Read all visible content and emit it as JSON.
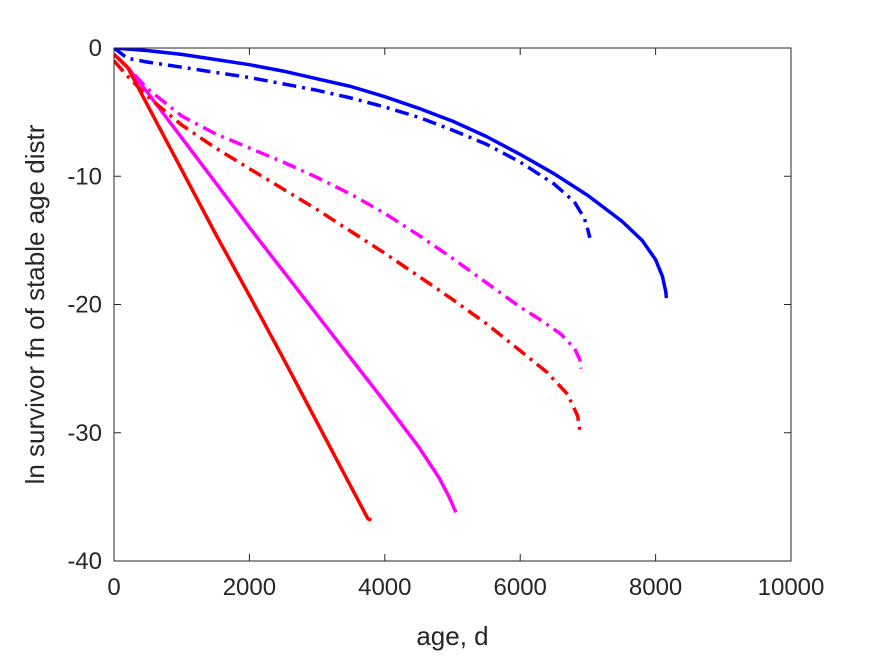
{
  "chart_data": {
    "type": "line",
    "title": "",
    "xlabel": "age, d",
    "ylabel": "ln survivor fn of stable age distr",
    "xlim": [
      0,
      10000
    ],
    "ylim": [
      -40,
      0
    ],
    "xticks": [
      0,
      2000,
      4000,
      6000,
      8000,
      10000
    ],
    "yticks": [
      0,
      -10,
      -20,
      -30,
      -40
    ],
    "xtick_labels": [
      "0",
      "2000",
      "4000",
      "6000",
      "8000",
      "10000"
    ],
    "ytick_labels": [
      "0",
      "-10",
      "-20",
      "-30",
      "-40"
    ],
    "grid": false,
    "legend": "none",
    "series": [
      {
        "color": "#0000ff",
        "style": "solid",
        "x": [
          0,
          500,
          1000,
          1500,
          2000,
          2500,
          3000,
          3500,
          4000,
          4500,
          5000,
          5500,
          6000,
          6500,
          7000,
          7500,
          7800,
          8000,
          8100,
          8150,
          8160
        ],
        "y": [
          0,
          -0.2,
          -0.5,
          -0.9,
          -1.3,
          -1.8,
          -2.4,
          -3.0,
          -3.8,
          -4.7,
          -5.7,
          -6.9,
          -8.3,
          -9.8,
          -11.5,
          -13.5,
          -15.0,
          -16.5,
          -17.8,
          -19.0,
          -19.5
        ]
      },
      {
        "color": "#0000ff",
        "style": "dashdot",
        "x": [
          0,
          200,
          500,
          1000,
          1500,
          2000,
          2500,
          3000,
          3500,
          4000,
          4500,
          5000,
          5500,
          6000,
          6500,
          6800,
          6950,
          7000,
          7030
        ],
        "y": [
          0,
          -0.8,
          -1.1,
          -1.5,
          -1.9,
          -2.3,
          -2.8,
          -3.3,
          -3.9,
          -4.6,
          -5.4,
          -6.4,
          -7.5,
          -8.9,
          -10.6,
          -12.0,
          -13.3,
          -14.2,
          -14.8
        ]
      },
      {
        "color": "#ff00ff",
        "style": "solid",
        "x": [
          0,
          200,
          500,
          1000,
          1500,
          2000,
          2500,
          3000,
          3500,
          4000,
          4500,
          4800,
          4950,
          5000,
          5050
        ],
        "y": [
          -0.5,
          -1.5,
          -3.5,
          -7.0,
          -10.5,
          -14.0,
          -17.4,
          -20.8,
          -24.2,
          -27.6,
          -31.1,
          -33.5,
          -35.0,
          -35.6,
          -36.2
        ]
      },
      {
        "color": "#ff00ff",
        "style": "dashdot",
        "x": [
          0,
          200,
          500,
          1000,
          1500,
          2000,
          2500,
          3000,
          3500,
          4000,
          4500,
          5000,
          5500,
          6000,
          6300,
          6600,
          6800,
          6880,
          6900
        ],
        "y": [
          -0.5,
          -1.5,
          -3.2,
          -5.3,
          -6.7,
          -7.8,
          -8.9,
          -10.1,
          -11.4,
          -12.9,
          -14.6,
          -16.4,
          -18.3,
          -20.2,
          -21.2,
          -22.3,
          -23.4,
          -24.3,
          -25.0
        ]
      },
      {
        "color": "#ff0000",
        "style": "solid",
        "x": [
          0,
          200,
          500,
          1000,
          1500,
          2000,
          2500,
          3000,
          3500,
          3600,
          3700,
          3750,
          3800
        ],
        "y": [
          -0.5,
          -1.5,
          -4.5,
          -9.5,
          -14.5,
          -19.3,
          -24.2,
          -29.2,
          -34.2,
          -35.2,
          -36.2,
          -36.7,
          -36.8
        ]
      },
      {
        "color": "#ff0000",
        "style": "dashdot",
        "x": [
          0,
          200,
          500,
          1000,
          1500,
          2000,
          2500,
          3000,
          3500,
          4000,
          4500,
          5000,
          5500,
          6000,
          6400,
          6700,
          6850,
          6880
        ],
        "y": [
          -1.0,
          -2.2,
          -3.8,
          -6.0,
          -7.8,
          -9.4,
          -11.0,
          -12.6,
          -14.3,
          -16.0,
          -17.8,
          -19.6,
          -21.5,
          -23.6,
          -25.3,
          -27.0,
          -28.7,
          -29.8
        ]
      }
    ]
  }
}
